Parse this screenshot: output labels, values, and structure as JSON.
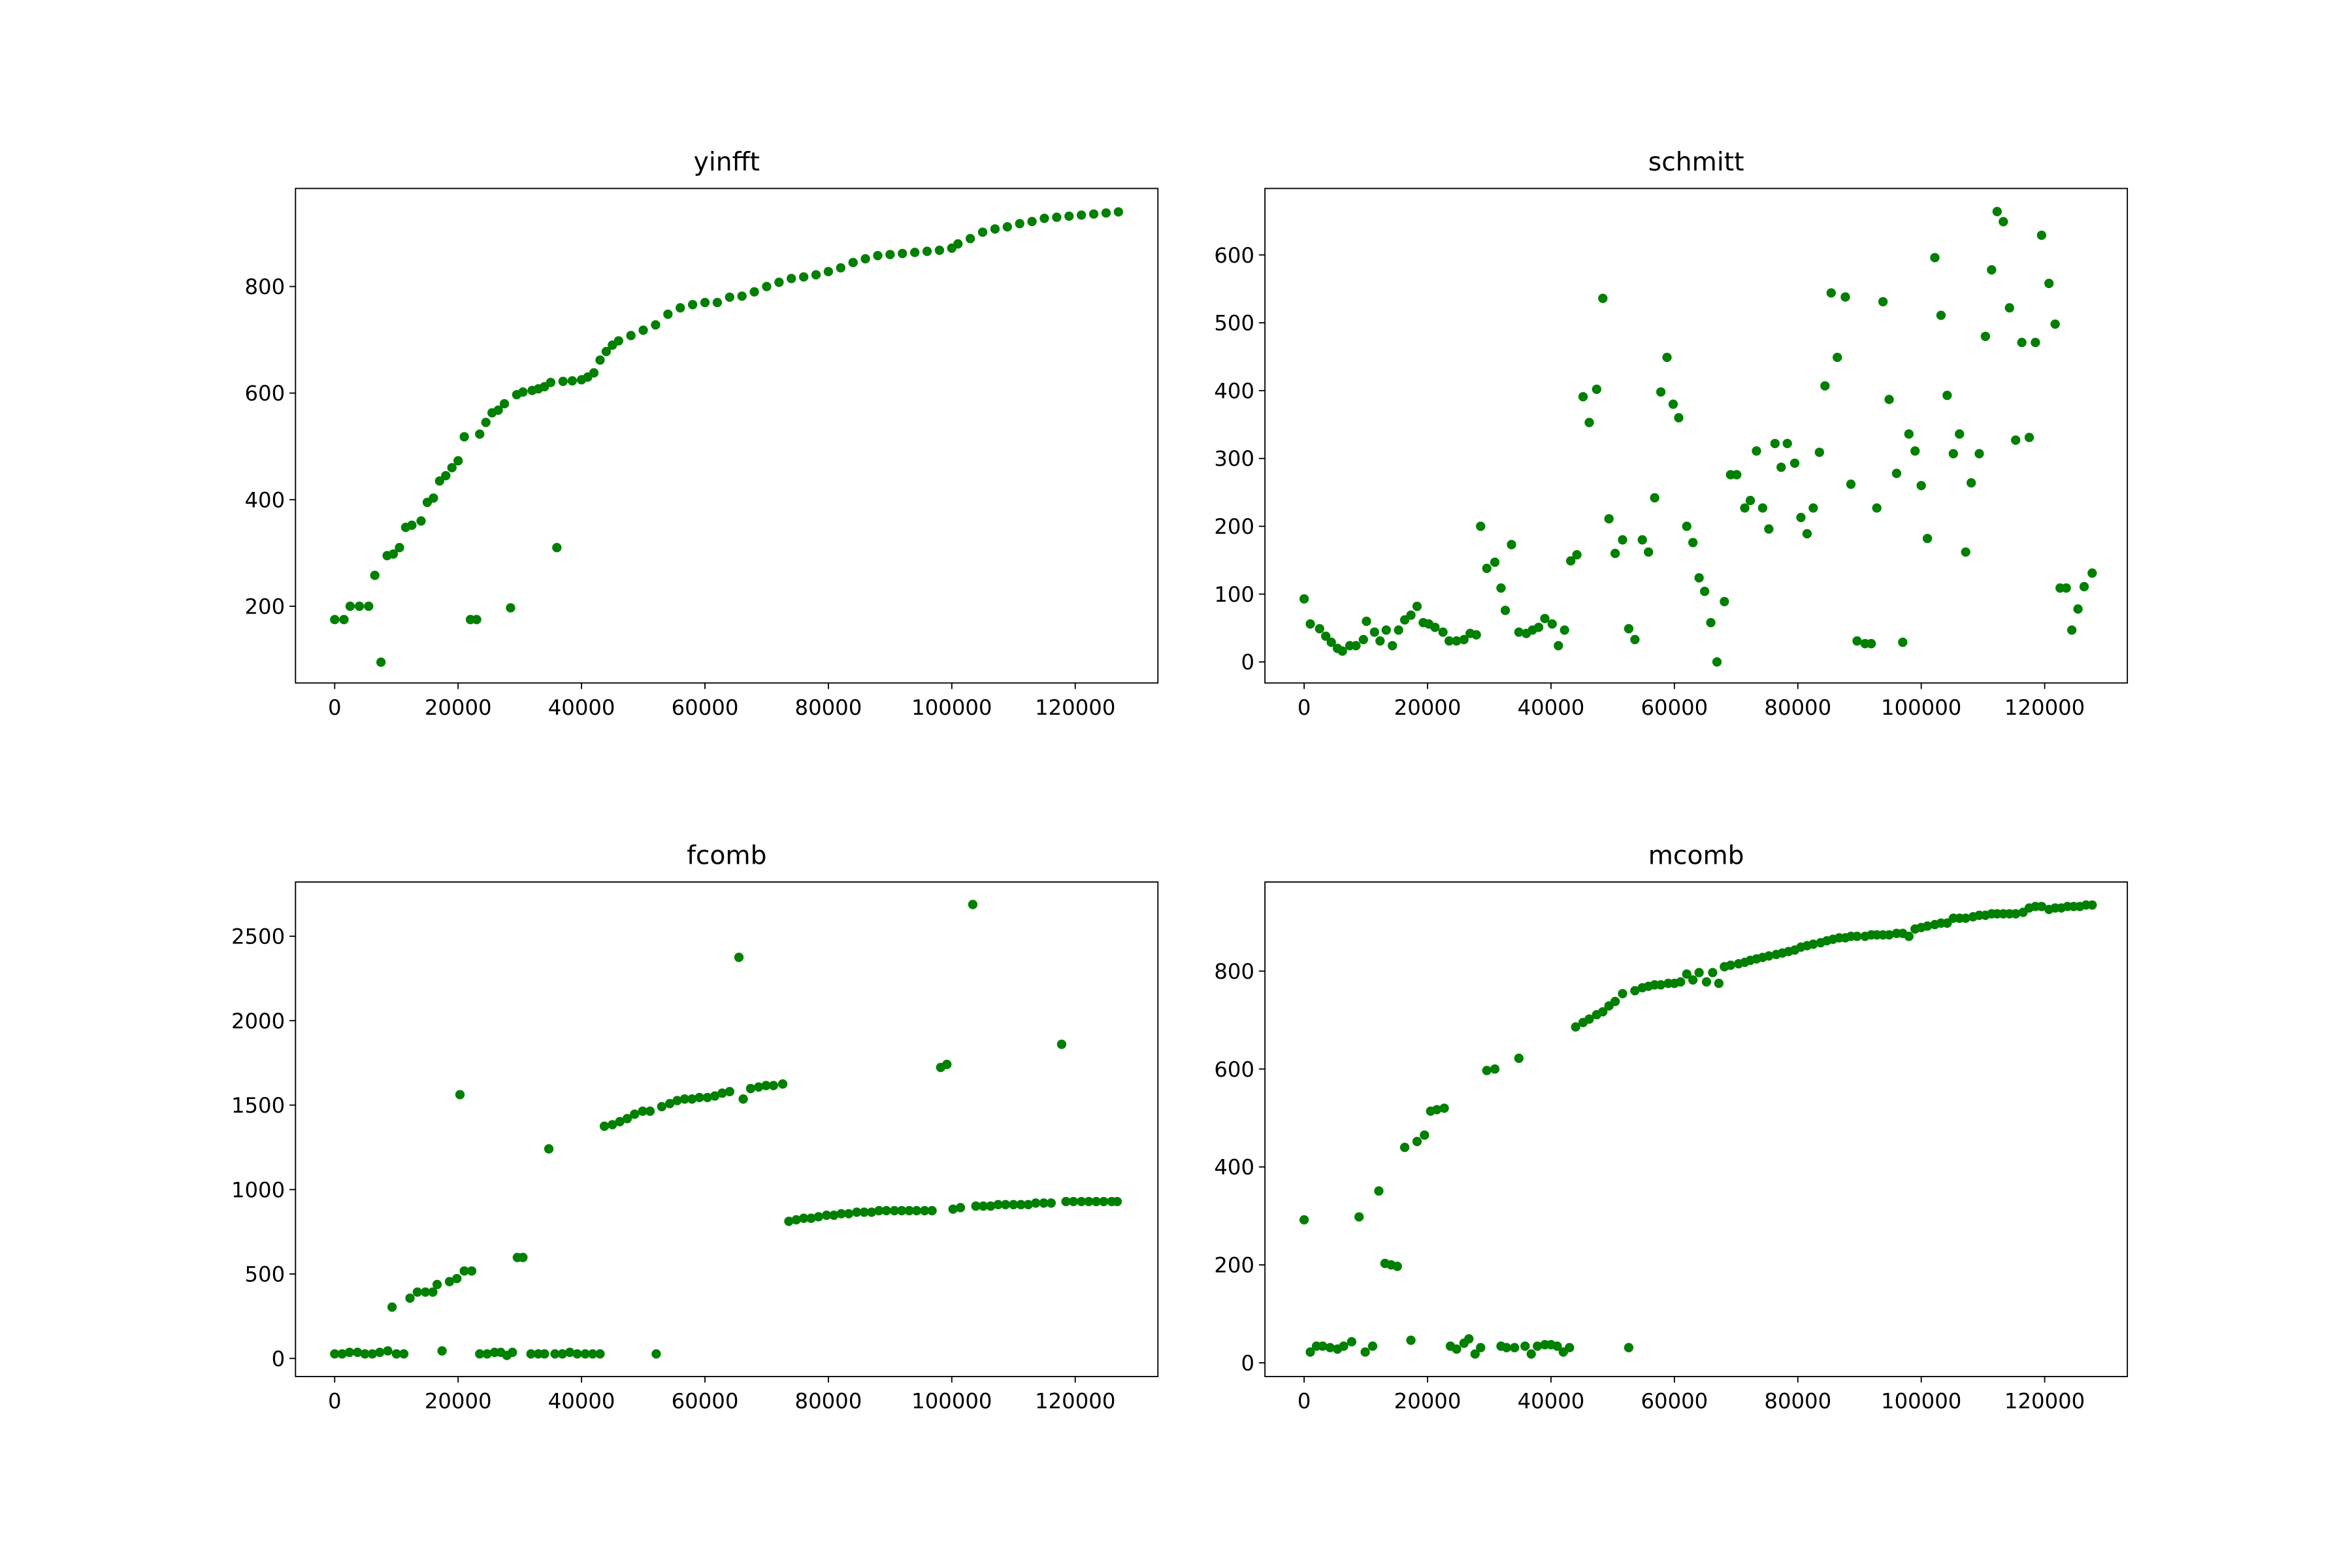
{
  "chart_data": [
    {
      "type": "scatter",
      "title": "yinfft",
      "color": "#008000",
      "xlim": [
        -6350,
        133400
      ],
      "ylim": [
        56,
        984
      ],
      "xticks": [
        0,
        20000,
        40000,
        60000,
        80000,
        100000,
        120000
      ],
      "yticks": [
        200,
        400,
        600,
        800
      ],
      "x": [
        0,
        1500,
        2500,
        4000,
        5500,
        6500,
        7500,
        8500,
        9500,
        10500,
        11500,
        12500,
        14000,
        15000,
        16000,
        17000,
        18000,
        19000,
        20000,
        21000,
        22000,
        23000,
        23500,
        24500,
        25500,
        26500,
        27500,
        28500,
        29500,
        30500,
        32000,
        33000,
        34000,
        35000,
        36000,
        37000,
        38500,
        40000,
        41000,
        42000,
        43000,
        44000,
        45000,
        46000,
        48000,
        50000,
        52000,
        54000,
        56000,
        58000,
        60000,
        62000,
        64000,
        66000,
        68000,
        70000,
        72000,
        74000,
        76000,
        78000,
        80000,
        82000,
        84000,
        86000,
        88000,
        90000,
        92000,
        94000,
        96000,
        98000,
        100000,
        101000,
        103000,
        105000,
        107000,
        109000,
        111000,
        113000,
        115000,
        117000,
        119000,
        121000,
        123000,
        125000,
        127000
      ],
      "values": [
        175,
        175,
        200,
        200,
        200,
        258,
        95,
        295,
        298,
        310,
        348,
        352,
        360,
        395,
        403,
        435,
        445,
        460,
        473,
        518,
        175,
        175,
        523,
        545,
        563,
        568,
        580,
        197,
        597,
        602,
        605,
        608,
        612,
        620,
        310,
        622,
        623,
        625,
        630,
        638,
        662,
        678,
        690,
        698,
        708,
        718,
        728,
        748,
        760,
        766,
        770,
        770,
        780,
        782,
        790,
        800,
        808,
        815,
        818,
        822,
        828,
        835,
        845,
        852,
        858,
        860,
        862,
        864,
        866,
        868,
        872,
        880,
        890,
        902,
        908,
        912,
        918,
        922,
        928,
        930,
        932,
        934,
        936,
        938,
        940
      ]
    },
    {
      "type": "scatter",
      "title": "schmitt",
      "color": "#008000",
      "xlim": [
        -6350,
        133400
      ],
      "ylim": [
        -31,
        698
      ],
      "xticks": [
        0,
        20000,
        40000,
        60000,
        80000,
        100000,
        120000
      ],
      "yticks": [
        0,
        100,
        200,
        300,
        400,
        500,
        600
      ],
      "x": [
        0,
        1000,
        2500,
        3500,
        4400,
        5400,
        6200,
        7400,
        8400,
        9600,
        10100,
        11400,
        12300,
        13300,
        14300,
        15300,
        16300,
        17300,
        18300,
        19300,
        20200,
        21200,
        22500,
        23500,
        24700,
        25900,
        26900,
        27900,
        28600,
        29600,
        30900,
        31900,
        32600,
        33600,
        34800,
        36000,
        37000,
        38000,
        39000,
        40200,
        41200,
        42200,
        43200,
        44200,
        45200,
        46200,
        47400,
        48400,
        49400,
        50400,
        51600,
        52600,
        53600,
        54800,
        55800,
        56800,
        57800,
        58800,
        59800,
        60700,
        62000,
        63000,
        64000,
        64900,
        65900,
        66900,
        68100,
        69100,
        70100,
        71400,
        72300,
        73300,
        74300,
        75300,
        76300,
        77300,
        78300,
        79500,
        80500,
        81500,
        82500,
        83500,
        84400,
        85400,
        86400,
        87700,
        88600,
        89600,
        90900,
        91900,
        92800,
        93800,
        94800,
        96000,
        97000,
        98000,
        99000,
        100000,
        101000,
        102200,
        103200,
        104200,
        105200,
        106200,
        107200,
        108100,
        109400,
        110400,
        111400,
        112300,
        113300,
        114300,
        115300,
        116300,
        117500,
        118500,
        119500,
        120700,
        121700,
        122500,
        123500,
        124400,
        125400,
        126400,
        127700
      ],
      "values": [
        93,
        56,
        49,
        38,
        29,
        20,
        16,
        24,
        24,
        33,
        60,
        44,
        31,
        47,
        24,
        47,
        62,
        69,
        82,
        58,
        56,
        51,
        44,
        31,
        31,
        33,
        42,
        40,
        200,
        138,
        147,
        109,
        76,
        173,
        44,
        42,
        47,
        51,
        64,
        56,
        24,
        47,
        149,
        158,
        391,
        353,
        402,
        536,
        211,
        160,
        180,
        49,
        33,
        180,
        162,
        242,
        398,
        449,
        380,
        360,
        200,
        176,
        124,
        104,
        58,
        0,
        89,
        276,
        276,
        227,
        238,
        311,
        227,
        196,
        322,
        287,
        322,
        293,
        213,
        189,
        227,
        309,
        407,
        544,
        449,
        538,
        262,
        31,
        27,
        27,
        227,
        531,
        387,
        278,
        29,
        336,
        311,
        260,
        182,
        596,
        511,
        393,
        307,
        336,
        162,
        264,
        307,
        480,
        578,
        664,
        649,
        522,
        327,
        471,
        331,
        471,
        629,
        558,
        498,
        109,
        109,
        47,
        78,
        111,
        131
      ]
    },
    {
      "type": "scatter",
      "title": "fcomb",
      "color": "#008000",
      "xlim": [
        -6350,
        133400
      ],
      "ylim": [
        -107,
        2821
      ],
      "xticks": [
        0,
        20000,
        40000,
        60000,
        80000,
        100000,
        120000
      ],
      "yticks": [
        0,
        500,
        1000,
        1500,
        2000,
        2500
      ],
      "x": [
        0,
        1200,
        2400,
        3700,
        4900,
        6100,
        7300,
        8600,
        9300,
        10000,
        11200,
        12200,
        13400,
        14700,
        15900,
        16600,
        17400,
        18600,
        19800,
        20300,
        21000,
        22200,
        23500,
        24700,
        25900,
        26900,
        27900,
        28800,
        29600,
        30500,
        31800,
        33000,
        34000,
        34700,
        35700,
        36900,
        38100,
        39300,
        40600,
        41800,
        43000,
        43700,
        45000,
        46200,
        47400,
        48600,
        49900,
        51100,
        52100,
        53000,
        54300,
        55500,
        56700,
        57900,
        59100,
        60400,
        61600,
        62800,
        64000,
        65500,
        66200,
        67400,
        68700,
        69900,
        71100,
        72600,
        73600,
        74800,
        76000,
        77200,
        78400,
        79700,
        80900,
        82100,
        83300,
        84600,
        85800,
        87000,
        88200,
        89400,
        90700,
        91900,
        93100,
        94300,
        95600,
        96800,
        98200,
        99200,
        100200,
        101400,
        103400,
        103900,
        105100,
        106300,
        107500,
        108700,
        110000,
        111200,
        112400,
        113600,
        114900,
        116100,
        117800,
        118500,
        119700,
        121000,
        122200,
        123400,
        124600,
        125900,
        126800
      ],
      "values": [
        27,
        27,
        36,
        36,
        27,
        27,
        36,
        45,
        304,
        27,
        27,
        357,
        393,
        393,
        393,
        438,
        45,
        455,
        473,
        1562,
        518,
        518,
        27,
        27,
        36,
        36,
        18,
        36,
        598,
        598,
        27,
        27,
        27,
        1241,
        27,
        27,
        36,
        27,
        27,
        27,
        27,
        1375,
        1384,
        1402,
        1420,
        1446,
        1464,
        1464,
        27,
        1491,
        1509,
        1527,
        1536,
        1536,
        1545,
        1545,
        1554,
        1571,
        1580,
        2375,
        1536,
        1598,
        1607,
        1616,
        1616,
        1625,
        812,
        821,
        830,
        830,
        839,
        848,
        848,
        857,
        857,
        866,
        866,
        866,
        875,
        875,
        875,
        875,
        875,
        875,
        875,
        875,
        1723,
        1741,
        884,
        893,
        2688,
        902,
        902,
        902,
        911,
        911,
        911,
        911,
        911,
        920,
        920,
        920,
        1860,
        929,
        929,
        929,
        929,
        929,
        929,
        929,
        929
      ]
    },
    {
      "type": "scatter",
      "title": "mcomb",
      "color": "#008000",
      "xlim": [
        -6350,
        133400
      ],
      "ylim": [
        -28,
        982
      ],
      "xticks": [
        0,
        20000,
        40000,
        60000,
        80000,
        100000,
        120000
      ],
      "yticks": [
        0,
        200,
        400,
        600,
        800
      ],
      "x": [
        0,
        1000,
        2000,
        3000,
        4200,
        5400,
        6400,
        7700,
        8900,
        9900,
        11100,
        12100,
        13100,
        14100,
        15100,
        16300,
        17300,
        18300,
        19500,
        20500,
        21500,
        22700,
        23700,
        24700,
        25900,
        26700,
        27700,
        28600,
        29600,
        30900,
        31900,
        32800,
        34100,
        34800,
        35800,
        36800,
        37800,
        39000,
        40000,
        41000,
        42000,
        43000,
        44000,
        45200,
        46200,
        47400,
        48400,
        49400,
        50400,
        51600,
        52600,
        53600,
        54800,
        55800,
        56800,
        57800,
        59000,
        60000,
        61000,
        62000,
        63000,
        64000,
        65200,
        66200,
        67200,
        68100,
        69100,
        70400,
        71400,
        72300,
        73300,
        74300,
        75300,
        76500,
        77500,
        78500,
        79500,
        80500,
        81500,
        82500,
        83700,
        84700,
        85700,
        86700,
        87700,
        88600,
        89600,
        90900,
        91900,
        92800,
        93800,
        94800,
        96000,
        97000,
        98000,
        99000,
        100000,
        101000,
        102200,
        103200,
        104200,
        105200,
        106200,
        107200,
        108400,
        109400,
        110400,
        111400,
        112300,
        113300,
        114300,
        115300,
        116500,
        117500,
        118500,
        119500,
        120700,
        121700,
        122700,
        123700,
        124700,
        125700,
        126700,
        127700
      ],
      "values": [
        292,
        22,
        34,
        34,
        31,
        28,
        34,
        43,
        298,
        22,
        34,
        351,
        203,
        200,
        197,
        440,
        46,
        452,
        465,
        514,
        517,
        520,
        34,
        28,
        40,
        49,
        18,
        31,
        597,
        600,
        34,
        31,
        31,
        622,
        34,
        18,
        34,
        37,
        37,
        34,
        22,
        31,
        686,
        695,
        702,
        711,
        717,
        729,
        738,
        754,
        31,
        760,
        766,
        769,
        772,
        772,
        775,
        775,
        778,
        794,
        782,
        797,
        778,
        797,
        775,
        809,
        812,
        815,
        818,
        822,
        825,
        828,
        831,
        834,
        837,
        840,
        843,
        849,
        852,
        855,
        858,
        862,
        865,
        868,
        868,
        871,
        871,
        871,
        874,
        874,
        874,
        874,
        877,
        877,
        871,
        886,
        889,
        892,
        895,
        898,
        898,
        908,
        908,
        908,
        911,
        914,
        914,
        917,
        917,
        917,
        917,
        917,
        920,
        929,
        932,
        932,
        926,
        929,
        929,
        932,
        932,
        932,
        935,
        935
      ]
    }
  ]
}
